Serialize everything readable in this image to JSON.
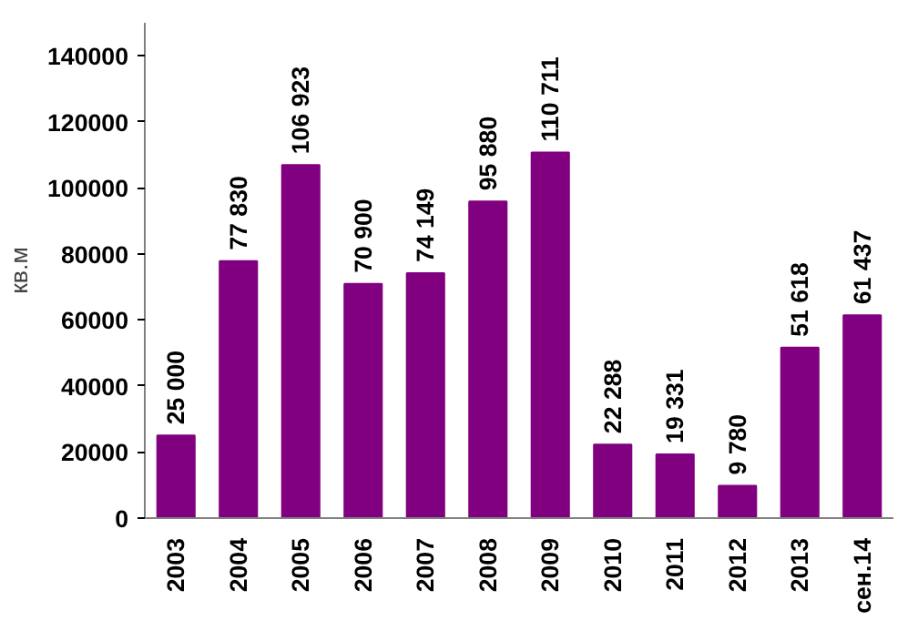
{
  "chart_data": {
    "type": "bar",
    "ylabel": "кв.м",
    "categories": [
      "2003",
      "2004",
      "2005",
      "2006",
      "2007",
      "2008",
      "2009",
      "2010",
      "2011",
      "2012",
      "2013",
      "сен.14"
    ],
    "values": [
      25000,
      77830,
      106923,
      70900,
      74149,
      95880,
      110711,
      22288,
      19331,
      9780,
      51618,
      61437
    ],
    "value_labels": [
      "25 000",
      "77 830",
      "106 923",
      "70 900",
      "74 149",
      "95 880",
      "110 711",
      "22 288",
      "19 331",
      "9 780",
      "51 618",
      "61 437"
    ],
    "color": "#800080",
    "ylim": [
      0,
      150000
    ],
    "yticks": [
      0,
      20000,
      40000,
      60000,
      80000,
      100000,
      120000,
      140000
    ],
    "grid": false
  }
}
